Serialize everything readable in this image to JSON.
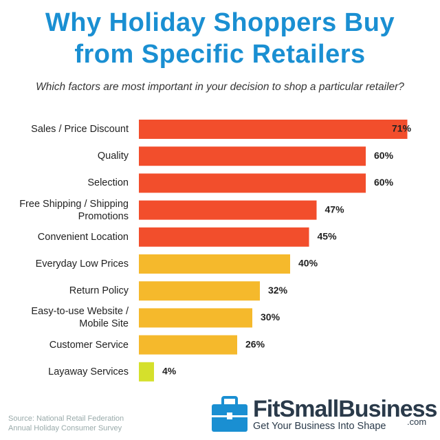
{
  "chart_data": {
    "type": "bar",
    "orientation": "horizontal",
    "title": "Why Holiday Shoppers Buy\nfrom Specific Retailers",
    "subtitle": "Which factors are most important in your decision to shop a particular retailer?",
    "categories": [
      "Sales / Price Discount",
      "Quality",
      "Selection",
      "Free Shipping / Shipping\nPromotions",
      "Convenient Location",
      "Everyday Low Prices",
      "Return Policy",
      "Easy-to-use Website /\nMobile Site",
      "Customer Service",
      "Layaway Services"
    ],
    "values": [
      71,
      60,
      60,
      47,
      45,
      40,
      32,
      30,
      26,
      4
    ],
    "value_labels": [
      "71%",
      "60%",
      "60%",
      "47%",
      "45%",
      "40%",
      "32%",
      "30%",
      "26%",
      "4%"
    ],
    "colors": [
      "#f24e2c",
      "#f24e2c",
      "#f24e2c",
      "#f24e2c",
      "#f24e2c",
      "#f5b92c",
      "#f5b92c",
      "#f5b92c",
      "#f5b92c",
      "#d5e02c"
    ],
    "source": "Source: National Retail Federation\nAnnual  Holiday Consumer Survey"
  },
  "logo": {
    "name": "FitSmallBusiness",
    "suffix": ".com",
    "tagline": "Get Your Business Into Shape"
  }
}
